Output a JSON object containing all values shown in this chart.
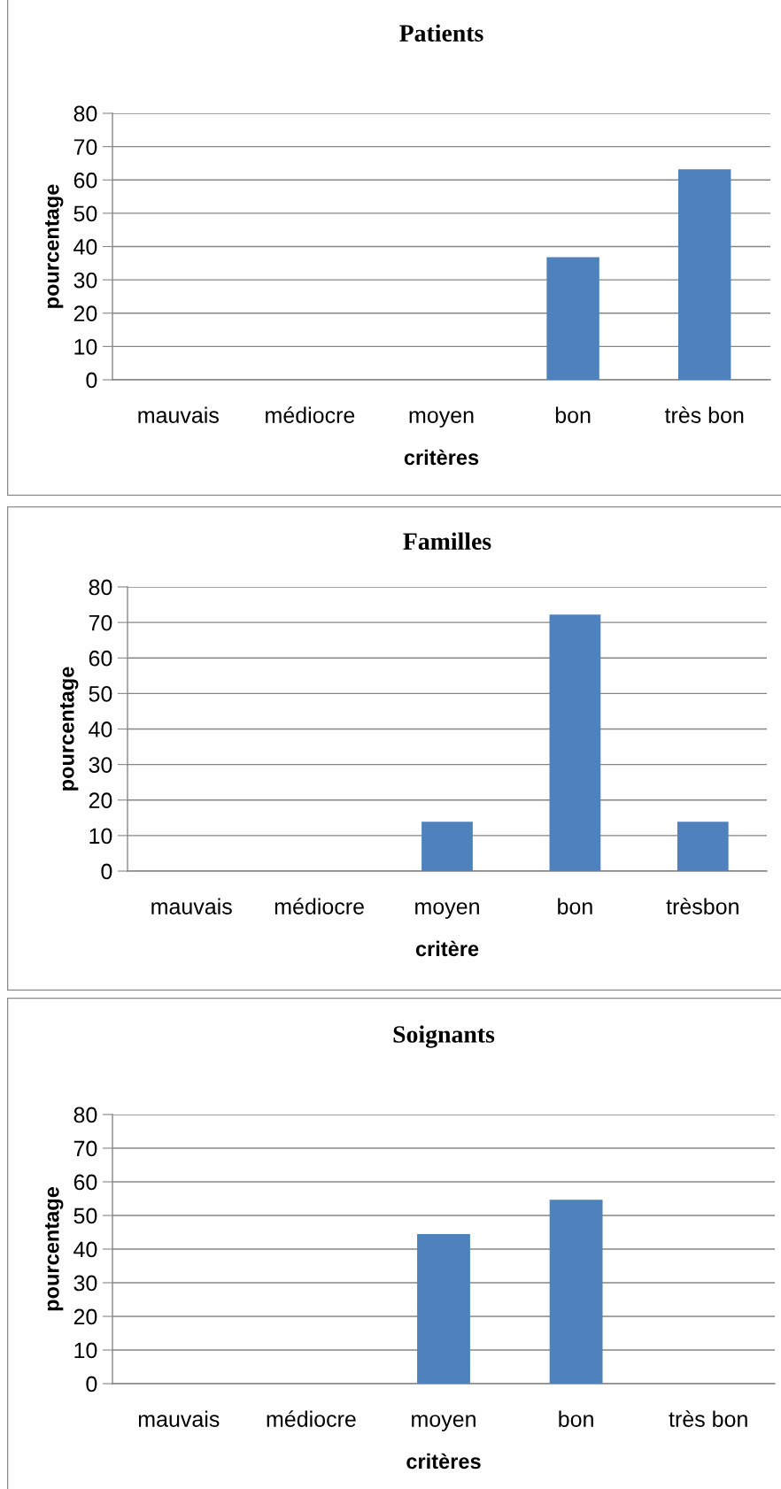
{
  "chart_data": [
    {
      "type": "bar",
      "title": "Patients",
      "xlabel": "critères",
      "ylabel": "pourcentage",
      "categories": [
        "mauvais",
        "médiocre",
        "moyen",
        "bon",
        "très bon"
      ],
      "values": [
        0,
        0,
        0,
        36.8,
        63.2
      ],
      "color": "#4f81bd",
      "ylim": [
        0,
        80
      ],
      "yticks": [
        0,
        10,
        20,
        30,
        40,
        50,
        60,
        70,
        80
      ],
      "grid": "y"
    },
    {
      "type": "bar",
      "title": "Familles",
      "xlabel": "critère",
      "ylabel": "pourcentage",
      "categories": [
        "mauvais",
        "médiocre",
        "moyen",
        "bon",
        "trèsbon"
      ],
      "values": [
        0,
        0,
        13.9,
        72.2,
        13.9
      ],
      "color": "#4f81bd",
      "ylim": [
        0,
        80
      ],
      "yticks": [
        0,
        10,
        20,
        30,
        40,
        50,
        60,
        70,
        80
      ],
      "grid": "y"
    },
    {
      "type": "bar",
      "title": "Soignants",
      "xlabel": "critères",
      "ylabel": "pourcentage",
      "categories": [
        "mauvais",
        "médiocre",
        "moyen",
        "bon",
        "très bon"
      ],
      "values": [
        0,
        0,
        44.5,
        54.7,
        0
      ],
      "color": "#4f81bd",
      "ylim": [
        0,
        80
      ],
      "yticks": [
        0,
        10,
        20,
        30,
        40,
        50,
        60,
        70,
        80
      ],
      "grid": "y"
    }
  ]
}
